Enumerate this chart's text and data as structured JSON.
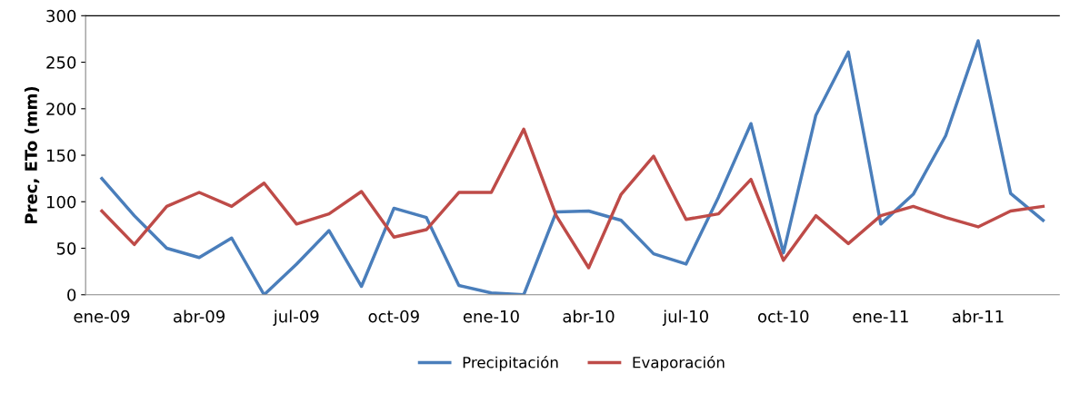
{
  "chart_data": {
    "type": "line",
    "ylabel": "Prec, ETo (mm)",
    "categories": [
      "ene-09",
      null,
      null,
      "abr-09",
      null,
      null,
      "jul-09",
      null,
      null,
      "oct-09",
      null,
      null,
      "ene-10",
      null,
      null,
      "abr-10",
      null,
      null,
      "jul-10",
      null,
      null,
      "oct-10",
      null,
      null,
      "ene-11",
      null,
      null,
      "abr-11",
      null,
      null
    ],
    "series": [
      {
        "name": "Precipitación",
        "color": "#4a7ebb",
        "values": [
          125,
          85,
          50,
          40,
          61,
          0,
          33,
          69,
          9,
          93,
          83,
          10,
          2,
          0,
          89,
          90,
          80,
          44,
          33,
          105,
          184,
          45,
          193,
          261,
          76,
          108,
          171,
          273,
          109,
          80
        ]
      },
      {
        "name": "Evaporación",
        "color": "#be4b48",
        "values": [
          90,
          54,
          95,
          110,
          95,
          120,
          76,
          87,
          111,
          62,
          70,
          110,
          110,
          178,
          85,
          29,
          108,
          149,
          81,
          87,
          124,
          37,
          85,
          55,
          85,
          95,
          83,
          73,
          90,
          95
        ]
      }
    ],
    "ylim": [
      0,
      300
    ],
    "yticks": [
      0,
      50,
      100,
      150,
      200,
      250,
      300
    ],
    "grid": false,
    "legend": "bottom",
    "marker": "none",
    "line_style": "solid"
  }
}
